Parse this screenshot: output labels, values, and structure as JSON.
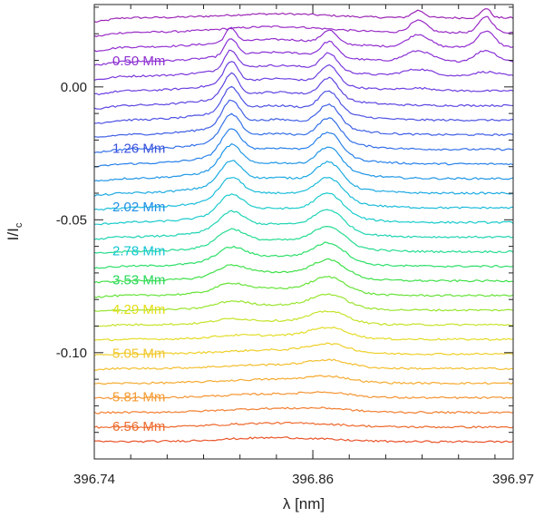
{
  "chart_data": {
    "type": "line",
    "title": "",
    "xlabel": "λ [nm]",
    "ylabel": "I/I",
    "ylabel_subscript": "c",
    "xlim": [
      396.74,
      396.97
    ],
    "ylim": [
      -0.14,
      0.031
    ],
    "xticks": [
      396.74,
      396.86,
      396.97
    ],
    "xtick_labels": [
      "396.74",
      "396.86",
      "396.97"
    ],
    "yticks": [
      0.0,
      -0.05,
      -0.1
    ],
    "ytick_labels": [
      "0.00",
      "-0.05",
      "-0.10"
    ],
    "grid": false,
    "legend": "inline labels on left",
    "n_series": 30,
    "baseline_top": 0.026,
    "baseline_spacing": 0.0055,
    "height_labels": [
      {
        "index": 3,
        "text": "0.50 Mm",
        "color": "#8e2fcf"
      },
      {
        "index": 9,
        "text": "1.26 Mm",
        "color": "#3a52dc"
      },
      {
        "index": 13,
        "text": "2.02 Mm",
        "color": "#1e8fe6"
      },
      {
        "index": 16,
        "text": "2.78 Mm",
        "color": "#13c6d4"
      },
      {
        "index": 18,
        "text": "3.53 Mm",
        "color": "#28d85a"
      },
      {
        "index": 20,
        "text": "4.29 Mm",
        "color": "#e3dd14"
      },
      {
        "index": 23,
        "text": "5.05 Mm",
        "color": "#f1c52c"
      },
      {
        "index": 26,
        "text": "5.81 Mm",
        "color": "#f49c31"
      },
      {
        "index": 28,
        "text": "6.56 Mm",
        "color": "#ec6a2c"
      }
    ],
    "colors": [
      "#9b27b6",
      "#9a2cc6",
      "#9330d0",
      "#8a33d6",
      "#7c38dc",
      "#6c3fe0",
      "#5c47e2",
      "#4e53e4",
      "#4060e6",
      "#3470e8",
      "#2a82ea",
      "#2196e6",
      "#1eaae2",
      "#1cbcda",
      "#1ccbcc",
      "#20d4b4",
      "#26dc90",
      "#2ddf6a",
      "#40e04a",
      "#66e33a",
      "#98e52e",
      "#c4e42a",
      "#e4dc28",
      "#efcf2a",
      "#f4be2e",
      "#f6aa30",
      "#f59432",
      "#f27e30",
      "#ee682c",
      "#e95228"
    ],
    "features": [
      {
        "center": 396.815,
        "width": 0.0042,
        "series_start": 2,
        "series_end": 24,
        "peak_amp": 0.0115
      },
      {
        "center": 396.869,
        "width": 0.0055,
        "series_start": 2,
        "series_end": 30,
        "peak_amp": 0.0105
      },
      {
        "center": 396.918,
        "width": 0.0048,
        "series_start": 0,
        "series_end": 6,
        "peak_amp": 0.006
      },
      {
        "center": 396.955,
        "width": 0.0035,
        "series_start": 0,
        "series_end": 5,
        "peak_amp": 0.008
      }
    ]
  }
}
